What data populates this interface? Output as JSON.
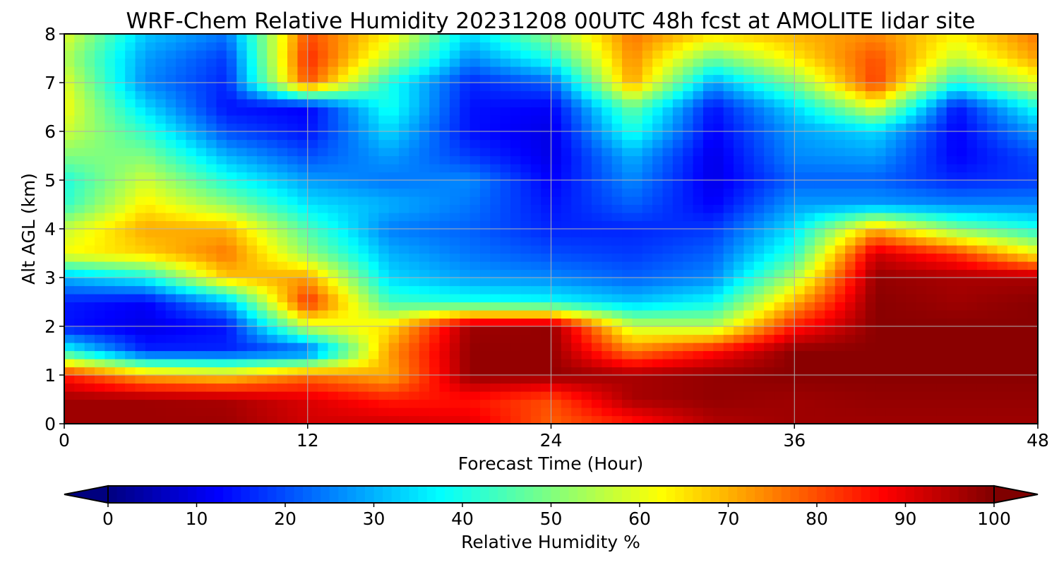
{
  "chart_data": {
    "type": "heatmap",
    "subtype": "filled-contour",
    "title": "WRF-Chem Relative Humidity 20231208 00UTC 48h fcst at AMOLITE lidar site",
    "xlabel": "Forecast Time (Hour)",
    "ylabel": "Alt AGL (km)",
    "xlim": [
      0,
      48
    ],
    "ylim": [
      0,
      8
    ],
    "xticks": [
      0,
      12,
      24,
      36,
      48
    ],
    "yticks": [
      0,
      1,
      2,
      3,
      4,
      5,
      6,
      7,
      8
    ],
    "grid": true,
    "colormap": "jet",
    "colorbar": {
      "label": "Relative Humidity %",
      "orientation": "horizontal",
      "placement": "bottom",
      "range": [
        0,
        100
      ],
      "ticks": [
        0,
        10,
        20,
        30,
        40,
        50,
        60,
        70,
        80,
        90,
        100
      ],
      "extend": "both"
    },
    "x": [
      0,
      4,
      8,
      12,
      16,
      20,
      24,
      28,
      32,
      36,
      40,
      44,
      48
    ],
    "y": [
      0,
      0.5,
      1,
      1.5,
      2,
      2.5,
      3,
      3.5,
      4,
      4.5,
      5,
      5.5,
      6,
      6.5,
      7,
      7.5,
      8
    ],
    "z": [
      [
        97,
        97,
        97,
        92,
        92,
        90,
        78,
        85,
        95,
        97,
        97,
        97,
        97
      ],
      [
        97,
        97,
        96,
        91,
        85,
        86,
        80,
        96,
        98,
        97,
        98,
        98,
        98
      ],
      [
        85,
        70,
        66,
        76,
        70,
        98,
        98,
        96,
        98,
        99,
        99,
        99,
        99
      ],
      [
        40,
        16,
        16,
        20,
        72,
        98,
        98,
        75,
        86,
        99,
        99,
        99,
        99
      ],
      [
        14,
        10,
        14,
        58,
        65,
        97,
        98,
        57,
        55,
        85,
        99,
        99,
        99
      ],
      [
        15,
        12,
        30,
        84,
        44,
        40,
        38,
        32,
        38,
        70,
        99,
        97,
        99
      ],
      [
        30,
        38,
        68,
        72,
        34,
        28,
        26,
        22,
        26,
        55,
        98,
        96,
        96
      ],
      [
        62,
        67,
        76,
        52,
        30,
        24,
        20,
        18,
        22,
        42,
        92,
        82,
        62
      ],
      [
        57,
        71,
        70,
        45,
        25,
        22,
        16,
        16,
        18,
        35,
        70,
        50,
        40
      ],
      [
        42,
        64,
        52,
        35,
        30,
        24,
        14,
        22,
        12,
        28,
        28,
        26,
        26
      ],
      [
        40,
        58,
        40,
        28,
        24,
        26,
        12,
        26,
        10,
        22,
        22,
        16,
        18
      ],
      [
        50,
        50,
        30,
        20,
        28,
        18,
        10,
        30,
        10,
        26,
        28,
        12,
        20
      ],
      [
        58,
        42,
        20,
        14,
        34,
        14,
        10,
        40,
        12,
        28,
        34,
        12,
        28
      ],
      [
        62,
        34,
        14,
        12,
        40,
        14,
        12,
        48,
        14,
        34,
        60,
        14,
        40
      ],
      [
        60,
        26,
        16,
        80,
        40,
        16,
        22,
        72,
        28,
        50,
        82,
        40,
        60
      ],
      [
        55,
        28,
        18,
        84,
        56,
        26,
        40,
        74,
        48,
        64,
        80,
        56,
        72
      ],
      [
        60,
        32,
        24,
        80,
        64,
        34,
        52,
        76,
        66,
        70,
        74,
        64,
        76
      ]
    ]
  }
}
